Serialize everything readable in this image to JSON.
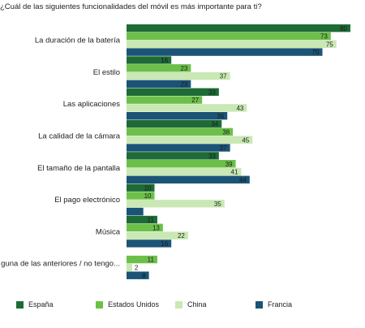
{
  "chart_data": {
    "type": "bar",
    "orientation": "horizontal",
    "title": "¿Cuál de las siguientes funcionalidades del móvil es más importante para ti?",
    "categories": [
      "La duración de la batería",
      "El estilo",
      "Las aplicaciones",
      "La calidad de la cámara",
      "El tamaño de la pantalla",
      "El pago electrónico",
      "Música",
      "guna de las anteriores / no tengo..."
    ],
    "series": [
      {
        "name": "España",
        "color": "#1e6b36",
        "values": [
          80,
          16,
          33,
          34,
          33,
          10,
          11,
          0
        ]
      },
      {
        "name": "Estados Unidos",
        "color": "#6cc04a",
        "values": [
          73,
          23,
          27,
          38,
          39,
          10,
          13,
          11
        ]
      },
      {
        "name": "China",
        "color": "#c9e8b3",
        "values": [
          75,
          37,
          43,
          45,
          41,
          35,
          22,
          2
        ]
      },
      {
        "name": "Francia",
        "color": "#1b5476",
        "values": [
          70,
          23,
          36,
          37,
          44,
          6,
          16,
          8
        ]
      }
    ],
    "value_labels": [
      [
        "80",
        "16",
        "33",
        "34",
        "33",
        "10",
        "11",
        ""
      ],
      [
        "73",
        "23",
        "27",
        "38",
        "39",
        "10",
        "13",
        "11"
      ],
      [
        "75",
        "37",
        "43",
        "45",
        "41",
        "35",
        "22",
        "2"
      ],
      [
        "70",
        "23",
        "36",
        "37",
        "44",
        "",
        "16",
        "8"
      ]
    ],
    "xlim": [
      0,
      80
    ],
    "grid": false,
    "legend_position": "bottom"
  }
}
